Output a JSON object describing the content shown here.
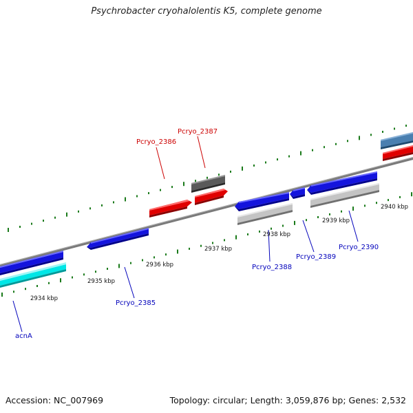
{
  "title": "Psychrobacter cryohalolentis K5, complete genome",
  "footer": {
    "accession": "Accession: NC_007969",
    "summary": "Topology: circular; Length: 3,059,876 bp; Genes: 2,532"
  },
  "colors": {
    "forward_gene": "#1010e0",
    "reverse_gene": "#e00000",
    "rna": "#00e0e0",
    "pseudo": "#c0c0c0",
    "backbone": "#808080",
    "tick": "#1a7a1a",
    "label_red": "#cc0000",
    "label_blue": "#0000bb"
  },
  "scale": {
    "ticks": [
      {
        "label": "2934 kbp"
      },
      {
        "label": "2935 kbp"
      },
      {
        "label": "2936 kbp"
      },
      {
        "label": "2937 kbp"
      },
      {
        "label": "2938 kbp"
      },
      {
        "label": "2939 kbp"
      },
      {
        "label": "2940 kbp"
      }
    ]
  },
  "genes": [
    {
      "name": "acnA"
    },
    {
      "name": "Pcryo_2385"
    },
    {
      "name": "Pcryo_2386"
    },
    {
      "name": "Pcryo_2387"
    },
    {
      "name": "Pcryo_2388"
    },
    {
      "name": "Pcryo_2389"
    },
    {
      "name": "Pcryo_2390"
    }
  ]
}
